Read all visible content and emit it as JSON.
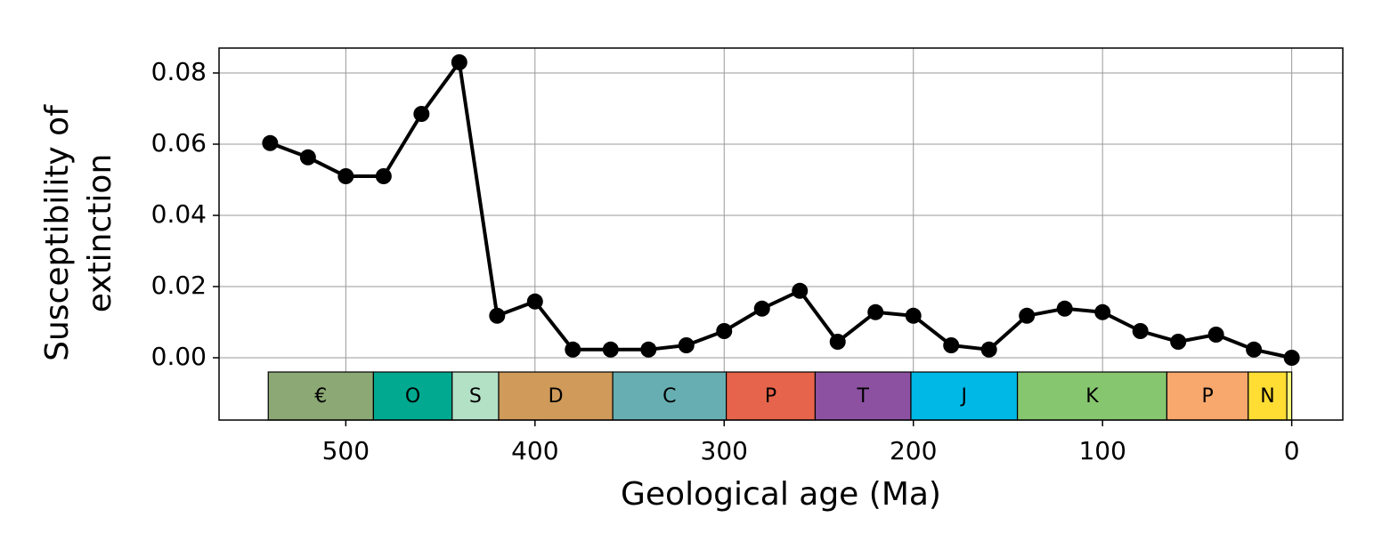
{
  "chart_data": {
    "type": "line",
    "xlabel": "Geological age (Ma)",
    "ylabel": [
      "Susceptibility of",
      "extinction"
    ],
    "x": [
      540,
      520,
      500,
      480,
      460,
      440,
      420,
      400,
      380,
      360,
      340,
      320,
      300,
      280,
      260,
      240,
      220,
      200,
      180,
      160,
      140,
      120,
      100,
      80,
      60,
      40,
      20,
      0
    ],
    "series": [
      {
        "color": "#000000",
        "values": [
          0.0603,
          0.0563,
          0.051,
          0.051,
          0.0685,
          0.083,
          0.0118,
          0.0158,
          0.0023,
          0.0023,
          0.0023,
          0.0035,
          0.0075,
          0.0138,
          0.0188,
          0.0045,
          0.0128,
          0.0118,
          0.0035,
          0.0023,
          0.0118,
          0.0138,
          0.0128,
          0.0075,
          0.0045,
          0.0065,
          0.0023,
          0
        ]
      }
    ],
    "xlim": [
      567,
      -27
    ],
    "ylim": [
      -0.0175,
      0.087
    ],
    "xticks": [
      500,
      400,
      300,
      200,
      100,
      0
    ],
    "yticks": [
      {
        "value": 0,
        "label": "0.00"
      },
      0.02,
      0.04,
      0.06,
      0.08
    ],
    "grid": true,
    "periods": [
      {
        "label": "€",
        "start": 541,
        "end": 485.4,
        "color": "#8ca874"
      },
      {
        "label": "O",
        "start": 485.4,
        "end": 443.8,
        "color": "#00a98f"
      },
      {
        "label": "S",
        "start": 443.8,
        "end": 419.2,
        "color": "#b3e1c6"
      },
      {
        "label": "D",
        "start": 419.2,
        "end": 358.9,
        "color": "#cf9a5a"
      },
      {
        "label": "C",
        "start": 358.9,
        "end": 298.9,
        "color": "#67aeb2"
      },
      {
        "label": "P",
        "start": 298.9,
        "end": 251.9,
        "color": "#e5644b"
      },
      {
        "label": "T",
        "start": 251.9,
        "end": 201.3,
        "color": "#8c52a1"
      },
      {
        "label": "J",
        "start": 201.3,
        "end": 145,
        "color": "#00b8e6"
      },
      {
        "label": "K",
        "start": 145,
        "end": 66,
        "color": "#86c66f"
      },
      {
        "label": "P",
        "start": 66,
        "end": 23,
        "color": "#f8a86c"
      },
      {
        "label": "N",
        "start": 23,
        "end": 2.58,
        "color": "#ffdd33"
      },
      {
        "label": null,
        "start": 2.58,
        "end": 0,
        "color": "#f9f97f"
      }
    ]
  }
}
